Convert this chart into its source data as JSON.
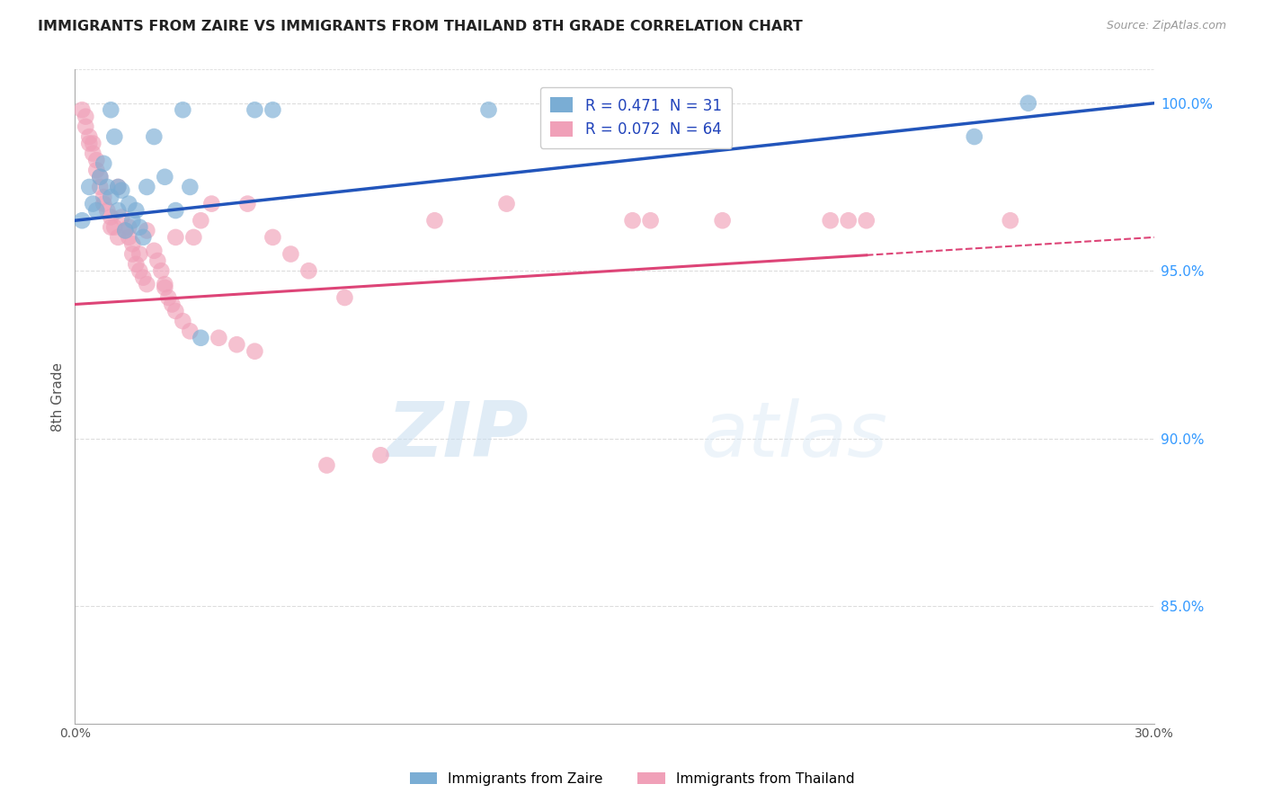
{
  "title": "IMMIGRANTS FROM ZAIRE VS IMMIGRANTS FROM THAILAND 8TH GRADE CORRELATION CHART",
  "source": "Source: ZipAtlas.com",
  "ylabel": "8th Grade",
  "legend_blue": "R = 0.471  N = 31",
  "legend_pink": "R = 0.072  N = 64",
  "legend_label_blue": "Immigrants from Zaire",
  "legend_label_pink": "Immigrants from Thailand",
  "xlim": [
    0.0,
    0.3
  ],
  "ylim": [
    0.815,
    1.01
  ],
  "blue_color": "#7aadd4",
  "pink_color": "#f0a0b8",
  "blue_line_color": "#2255bb",
  "pink_line_color": "#dd4477",
  "blue_scatter_x": [
    0.002,
    0.004,
    0.005,
    0.006,
    0.007,
    0.008,
    0.009,
    0.01,
    0.01,
    0.011,
    0.012,
    0.012,
    0.013,
    0.014,
    0.015,
    0.016,
    0.017,
    0.018,
    0.019,
    0.02,
    0.022,
    0.025,
    0.028,
    0.03,
    0.032,
    0.035,
    0.05,
    0.055,
    0.115,
    0.25,
    0.265
  ],
  "blue_scatter_y": [
    0.965,
    0.975,
    0.97,
    0.968,
    0.978,
    0.982,
    0.975,
    0.972,
    0.998,
    0.99,
    0.975,
    0.968,
    0.974,
    0.962,
    0.97,
    0.965,
    0.968,
    0.963,
    0.96,
    0.975,
    0.99,
    0.978,
    0.968,
    0.998,
    0.975,
    0.93,
    0.998,
    0.998,
    0.998,
    0.99,
    1.0
  ],
  "pink_scatter_x": [
    0.002,
    0.003,
    0.003,
    0.004,
    0.004,
    0.005,
    0.005,
    0.006,
    0.006,
    0.007,
    0.007,
    0.008,
    0.008,
    0.009,
    0.01,
    0.01,
    0.011,
    0.012,
    0.012,
    0.013,
    0.014,
    0.015,
    0.015,
    0.016,
    0.016,
    0.017,
    0.018,
    0.018,
    0.019,
    0.02,
    0.02,
    0.022,
    0.023,
    0.024,
    0.025,
    0.025,
    0.026,
    0.027,
    0.028,
    0.028,
    0.03,
    0.032,
    0.033,
    0.035,
    0.038,
    0.04,
    0.045,
    0.048,
    0.05,
    0.055,
    0.06,
    0.065,
    0.07,
    0.075,
    0.085,
    0.1,
    0.12,
    0.155,
    0.16,
    0.18,
    0.21,
    0.215,
    0.22,
    0.26
  ],
  "pink_scatter_y": [
    0.998,
    0.996,
    0.993,
    0.99,
    0.988,
    0.988,
    0.985,
    0.983,
    0.98,
    0.978,
    0.975,
    0.972,
    0.97,
    0.968,
    0.966,
    0.963,
    0.963,
    0.96,
    0.975,
    0.966,
    0.962,
    0.96,
    0.963,
    0.958,
    0.955,
    0.952,
    0.95,
    0.955,
    0.948,
    0.946,
    0.962,
    0.956,
    0.953,
    0.95,
    0.946,
    0.945,
    0.942,
    0.94,
    0.938,
    0.96,
    0.935,
    0.932,
    0.96,
    0.965,
    0.97,
    0.93,
    0.928,
    0.97,
    0.926,
    0.96,
    0.955,
    0.95,
    0.892,
    0.942,
    0.895,
    0.965,
    0.97,
    0.965,
    0.965,
    0.965,
    0.965,
    0.965,
    0.965,
    0.965
  ],
  "watermark_zip": "ZIP",
  "watermark_atlas": "atlas",
  "background_color": "#ffffff",
  "grid_color": "#dddddd"
}
